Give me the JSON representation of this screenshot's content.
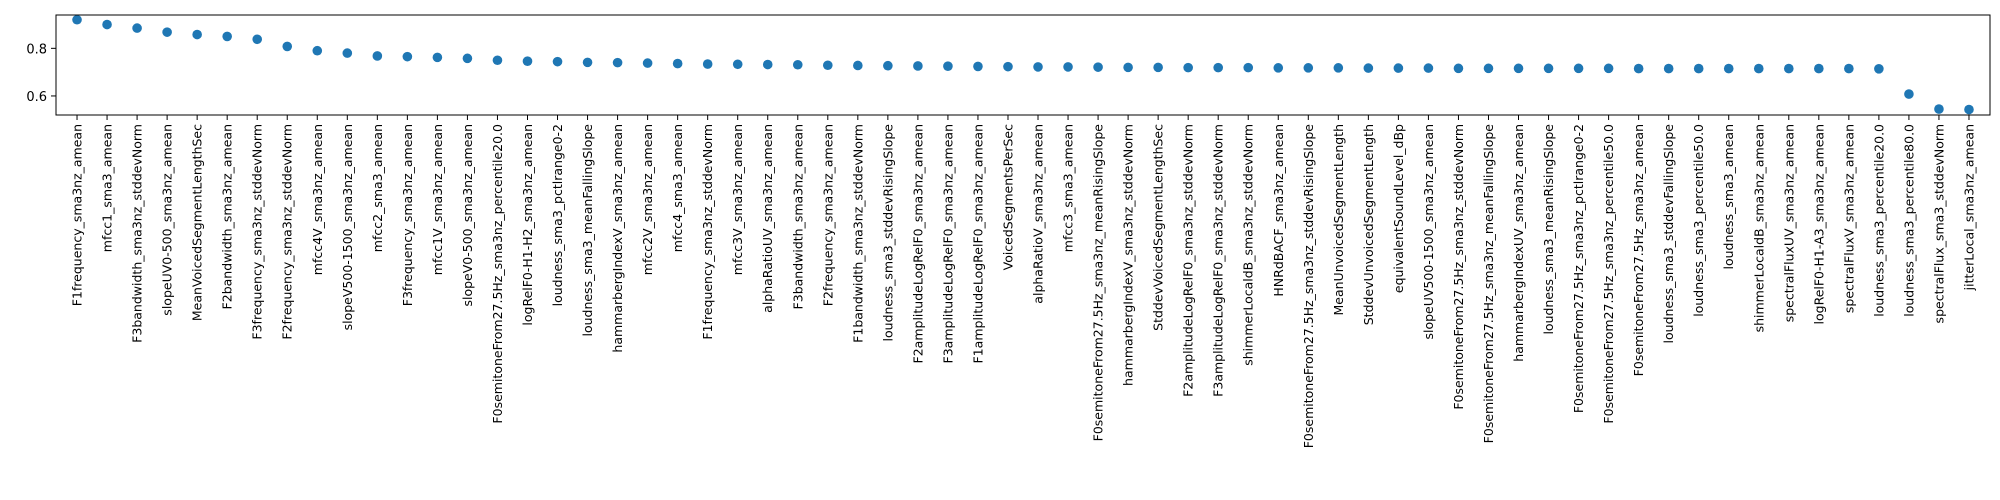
{
  "chart_data": {
    "type": "scatter",
    "title": "",
    "xlabel": "",
    "ylabel": "",
    "ylim": [
      0.52,
      0.94
    ],
    "yticks": [
      "0.6",
      "0.8"
    ],
    "grid": false,
    "marker_color": "#1f77b4",
    "categories": [
      "F1frequency_sma3nz_amean",
      "mfcc1_sma3_amean",
      "F3bandwidth_sma3nz_stddevNorm",
      "slopeUV0-500_sma3nz_amean",
      "MeanVoicedSegmentLengthSec",
      "F2bandwidth_sma3nz_amean",
      "F3frequency_sma3nz_stddevNorm",
      "F2frequency_sma3nz_stddevNorm",
      "mfcc4V_sma3nz_amean",
      "slopeV500-1500_sma3nz_amean",
      "mfcc2_sma3_amean",
      "F3frequency_sma3nz_amean",
      "mfcc1V_sma3nz_amean",
      "slopeV0-500_sma3nz_amean",
      "F0semitoneFrom27.5Hz_sma3nz_percentile20.0",
      "logRelF0-H1-H2_sma3nz_amean",
      "loudness_sma3_pctlrange0-2",
      "loudness_sma3_meanFallingSlope",
      "hammarbergIndexV_sma3nz_amean",
      "mfcc2V_sma3nz_amean",
      "mfcc4_sma3_amean",
      "F1frequency_sma3nz_stddevNorm",
      "mfcc3V_sma3nz_amean",
      "alphaRatioUV_sma3nz_amean",
      "F3bandwidth_sma3nz_amean",
      "F2frequency_sma3nz_amean",
      "F1bandwidth_sma3nz_stddevNorm",
      "loudness_sma3_stddevRisingSlope",
      "F2amplitudeLogRelF0_sma3nz_amean",
      "F3amplitudeLogRelF0_sma3nz_amean",
      "F1amplitudeLogRelF0_sma3nz_amean",
      "VoicedSegmentsPerSec",
      "alphaRatioV_sma3nz_amean",
      "mfcc3_sma3_amean",
      "F0semitoneFrom27.5Hz_sma3nz_meanRisingSlope",
      "hammarbergIndexV_sma3nz_stddevNorm",
      "StddevVoicedSegmentLengthSec",
      "F2amplitudeLogRelF0_sma3nz_stddevNorm",
      "F3amplitudeLogRelF0_sma3nz_stddevNorm",
      "shimmerLocaldB_sma3nz_stddevNorm",
      "HNRdBACF_sma3nz_amean",
      "F0semitoneFrom27.5Hz_sma3nz_stddevRisingSlope",
      "MeanUnvoicedSegmentLength",
      "StddevUnvoicedSegmentLength",
      "equivalentSoundLevel_dBp",
      "slopeUV500-1500_sma3nz_amean",
      "F0semitoneFrom27.5Hz_sma3nz_stddevNorm",
      "F0semitoneFrom27.5Hz_sma3nz_meanFallingSlope",
      "hammarbergIndexUV_sma3nz_amean",
      "loudness_sma3_meanRisingSlope",
      "F0semitoneFrom27.5Hz_sma3nz_pctlrange0-2",
      "F0semitoneFrom27.5Hz_sma3nz_percentile50.0",
      "F0semitoneFrom27.5Hz_sma3nz_amean",
      "loudness_sma3_stddevFallingSlope",
      "loudness_sma3_percentile50.0",
      "loudness_sma3_amean",
      "shimmerLocaldB_sma3nz_amean",
      "spectralFluxUV_sma3nz_amean",
      "logRelF0-H1-A3_sma3nz_amean",
      "spectralFluxV_sma3nz_amean",
      "loudness_sma3_percentile20.0",
      "loudness_sma3_percentile80.0",
      "spectralFlux_sma3_stddevNorm",
      "jitterLocal_sma3nz_amean"
    ],
    "values": [
      0.92,
      0.9,
      0.885,
      0.868,
      0.858,
      0.85,
      0.838,
      0.808,
      0.79,
      0.78,
      0.768,
      0.765,
      0.762,
      0.758,
      0.75,
      0.746,
      0.744,
      0.741,
      0.74,
      0.738,
      0.736,
      0.734,
      0.733,
      0.732,
      0.731,
      0.729,
      0.728,
      0.727,
      0.726,
      0.725,
      0.724,
      0.723,
      0.722,
      0.722,
      0.721,
      0.72,
      0.72,
      0.719,
      0.719,
      0.719,
      0.718,
      0.718,
      0.718,
      0.717,
      0.717,
      0.717,
      0.716,
      0.716,
      0.716,
      0.716,
      0.716,
      0.716,
      0.715,
      0.715,
      0.715,
      0.715,
      0.715,
      0.715,
      0.715,
      0.715,
      0.714,
      0.608,
      0.545,
      0.543
    ]
  }
}
